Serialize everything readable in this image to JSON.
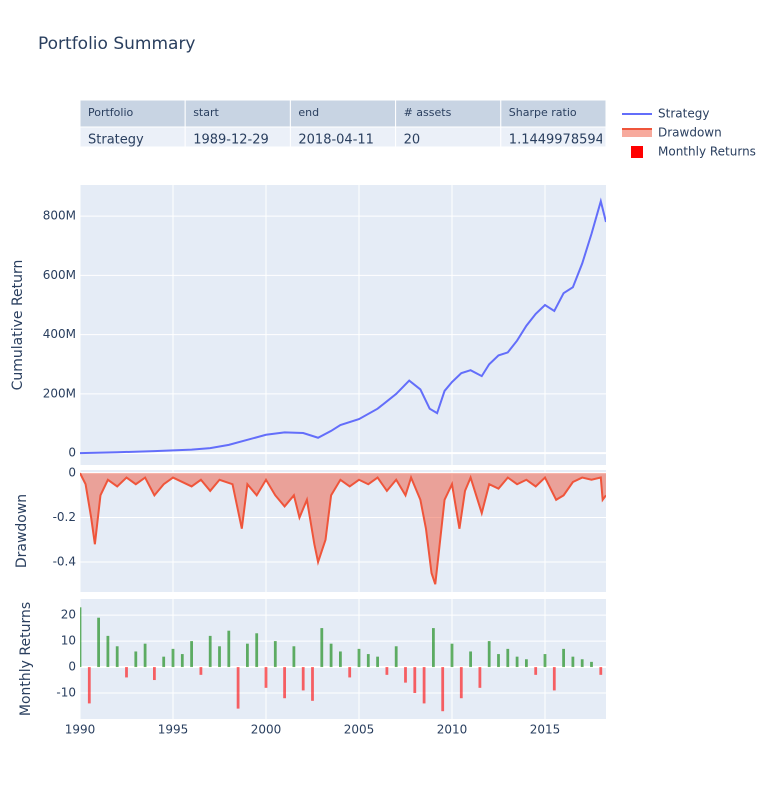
{
  "title": "Portfolio Summary",
  "table": {
    "header": [
      "Portfolio",
      "start",
      "end",
      "# assets",
      "Sharpe ratio"
    ],
    "rows": [
      [
        "Strategy",
        "1989-12-29",
        "2018-04-11",
        20,
        "1.144997859412"
      ]
    ]
  },
  "chart_data": [
    {
      "type": "line",
      "ylabel": "Cumulative Return",
      "grid": true,
      "x": [
        1990,
        1992,
        1994,
        1996,
        1997,
        1998,
        1999,
        2000,
        2001,
        2002,
        2002.8,
        2003.5,
        2004,
        2005,
        2006,
        2006.5,
        2007,
        2007.7,
        2008.3,
        2008.8,
        2009.2,
        2009.6,
        2010,
        2010.5,
        2011,
        2011.6,
        2012,
        2012.5,
        2013,
        2013.5,
        2014,
        2014.5,
        2015,
        2015.5,
        2016,
        2016.5,
        2017,
        2017.5,
        2018,
        2018.28
      ],
      "series": [
        {
          "name": "Strategy",
          "color": "#636efa",
          "values": [
            0,
            3000000,
            7000000,
            12000000,
            17000000,
            28000000,
            45000000,
            62000000,
            70000000,
            68000000,
            52000000,
            75000000,
            95000000,
            115000000,
            150000000,
            175000000,
            200000000,
            245000000,
            215000000,
            150000000,
            135000000,
            210000000,
            240000000,
            270000000,
            280000000,
            260000000,
            300000000,
            330000000,
            340000000,
            380000000,
            430000000,
            470000000,
            500000000,
            480000000,
            540000000,
            560000000,
            640000000,
            740000000,
            850000000,
            780000000
          ]
        }
      ],
      "ylim": [
        -40000000,
        905000000
      ],
      "yticks": [
        0,
        {
          "value": 200000000,
          "label": "200M"
        },
        {
          "value": 400000000,
          "label": "400M"
        },
        {
          "value": 600000000,
          "label": "600M"
        },
        {
          "value": 800000000,
          "label": "800M"
        }
      ]
    },
    {
      "type": "area",
      "ylabel": "Drawdown",
      "grid": true,
      "x": [
        1990.0,
        1990.3,
        1990.6,
        1990.8,
        1991.1,
        1991.5,
        1992,
        1992.5,
        1993,
        1993.5,
        1994,
        1994.5,
        1995,
        1996,
        1996.5,
        1997,
        1997.5,
        1998.2,
        1998.7,
        1999,
        1999.5,
        2000,
        2000.5,
        2001,
        2001.5,
        2001.8,
        2002.2,
        2002.6,
        2002.8,
        2003.2,
        2003.5,
        2004,
        2004.5,
        2005,
        2005.5,
        2006,
        2006.5,
        2007,
        2007.5,
        2007.8,
        2008.3,
        2008.6,
        2008.9,
        2009.1,
        2009.3,
        2009.6,
        2010,
        2010.4,
        2010.7,
        2011,
        2011.6,
        2012,
        2012.5,
        2013,
        2013.5,
        2014,
        2014.5,
        2015,
        2015.6,
        2016,
        2016.5,
        2017,
        2017.5,
        2018,
        2018.1,
        2018.28
      ],
      "series": [
        {
          "name": "Drawdown",
          "color": "#ef553b",
          "values": [
            0,
            -0.05,
            -0.2,
            -0.32,
            -0.1,
            -0.03,
            -0.06,
            -0.02,
            -0.05,
            -0.02,
            -0.1,
            -0.05,
            -0.02,
            -0.06,
            -0.03,
            -0.08,
            -0.03,
            -0.05,
            -0.25,
            -0.05,
            -0.1,
            -0.03,
            -0.1,
            -0.15,
            -0.1,
            -0.2,
            -0.12,
            -0.32,
            -0.4,
            -0.3,
            -0.1,
            -0.03,
            -0.06,
            -0.03,
            -0.05,
            -0.02,
            -0.08,
            -0.03,
            -0.1,
            -0.02,
            -0.12,
            -0.25,
            -0.45,
            -0.5,
            -0.35,
            -0.12,
            -0.05,
            -0.25,
            -0.08,
            -0.02,
            -0.18,
            -0.05,
            -0.07,
            -0.02,
            -0.05,
            -0.03,
            -0.06,
            -0.02,
            -0.12,
            -0.1,
            -0.04,
            -0.02,
            -0.03,
            -0.02,
            -0.12,
            -0.1
          ]
        }
      ],
      "ylim": [
        -0.535,
        0.014
      ],
      "yticks": [
        0,
        -0.2,
        -0.4
      ]
    },
    {
      "type": "bar",
      "ylabel": "Monthly Returns",
      "grid": true,
      "x": [
        1990,
        1990.5,
        1991,
        1991.5,
        1992,
        1992.5,
        1993,
        1993.5,
        1994,
        1994.5,
        1995,
        1995.5,
        1996,
        1996.5,
        1997,
        1997.5,
        1998,
        1998.5,
        1999,
        1999.5,
        2000,
        2000.5,
        2001,
        2001.5,
        2002,
        2002.5,
        2003,
        2003.5,
        2004,
        2004.5,
        2005,
        2005.5,
        2006,
        2006.5,
        2007,
        2007.5,
        2008,
        2008.5,
        2009,
        2009.5,
        2010,
        2010.5,
        2011,
        2011.5,
        2012,
        2012.5,
        2013,
        2013.5,
        2014,
        2014.5,
        2015,
        2015.5,
        2016,
        2016.5,
        2017,
        2017.5,
        2018
      ],
      "series": [
        {
          "name": "Monthly Returns",
          "color": "#ff0000",
          "positive_color": "rgba(0,128,0,0.6)",
          "negative_color": "rgba(255,0,0,0.6)",
          "values": [
            23,
            -14,
            19,
            12,
            8,
            -4,
            6,
            9,
            -5,
            4,
            7,
            5,
            10,
            -3,
            12,
            8,
            14,
            -16,
            9,
            13,
            -8,
            10,
            -12,
            8,
            -9,
            -13,
            15,
            9,
            6,
            -4,
            7,
            5,
            4,
            -3,
            8,
            -6,
            -10,
            -14,
            15,
            -17,
            9,
            -12,
            6,
            -8,
            10,
            5,
            7,
            4,
            3,
            -3,
            5,
            -9,
            7,
            4,
            3,
            2,
            -3
          ]
        }
      ],
      "ylim": [
        -20,
        26.2
      ],
      "yticks": [
        -10,
        0,
        10,
        20
      ],
      "xlim": [
        1990,
        2018.28
      ],
      "xticks": [
        1990,
        1995,
        2000,
        2005,
        2010,
        2015
      ]
    }
  ]
}
